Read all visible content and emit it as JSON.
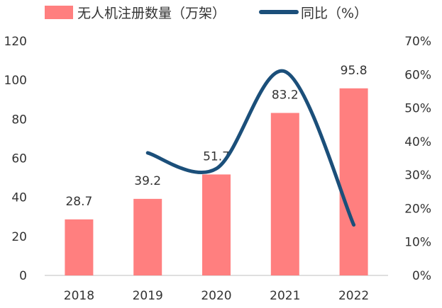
{
  "chart_data": {
    "type": "bar",
    "categories": [
      "2018",
      "2019",
      "2020",
      "2021",
      "2022"
    ],
    "series": [
      {
        "name": "无人机注册数量（万架）",
        "type": "bar",
        "axis": "left",
        "values": [
          28.7,
          39.2,
          51.7,
          83.2,
          95.8
        ],
        "color": "#FF7F7F"
      },
      {
        "name": "同比（%）",
        "type": "line",
        "axis": "right",
        "smooth": true,
        "values": [
          null,
          36.6,
          31.9,
          60.9,
          15.1
        ],
        "color": "#1B4F7A"
      }
    ],
    "data_labels": [
      "28.7",
      "39.2",
      "51.7",
      "83.2",
      "95.8"
    ],
    "y_left": {
      "lim": [
        0,
        120
      ],
      "ticks": [
        0,
        20,
        40,
        60,
        80,
        100,
        120
      ],
      "tick_labels": [
        "0",
        "20",
        "40",
        "60",
        "80",
        "100",
        "120"
      ]
    },
    "y_right": {
      "lim": [
        0,
        70
      ],
      "ticks": [
        0,
        10,
        20,
        30,
        40,
        50,
        60,
        70
      ],
      "tick_labels": [
        "0%",
        "10%",
        "20%",
        "30%",
        "40%",
        "50%",
        "60%",
        "70%"
      ]
    },
    "legend_position": "top",
    "grid": false
  }
}
